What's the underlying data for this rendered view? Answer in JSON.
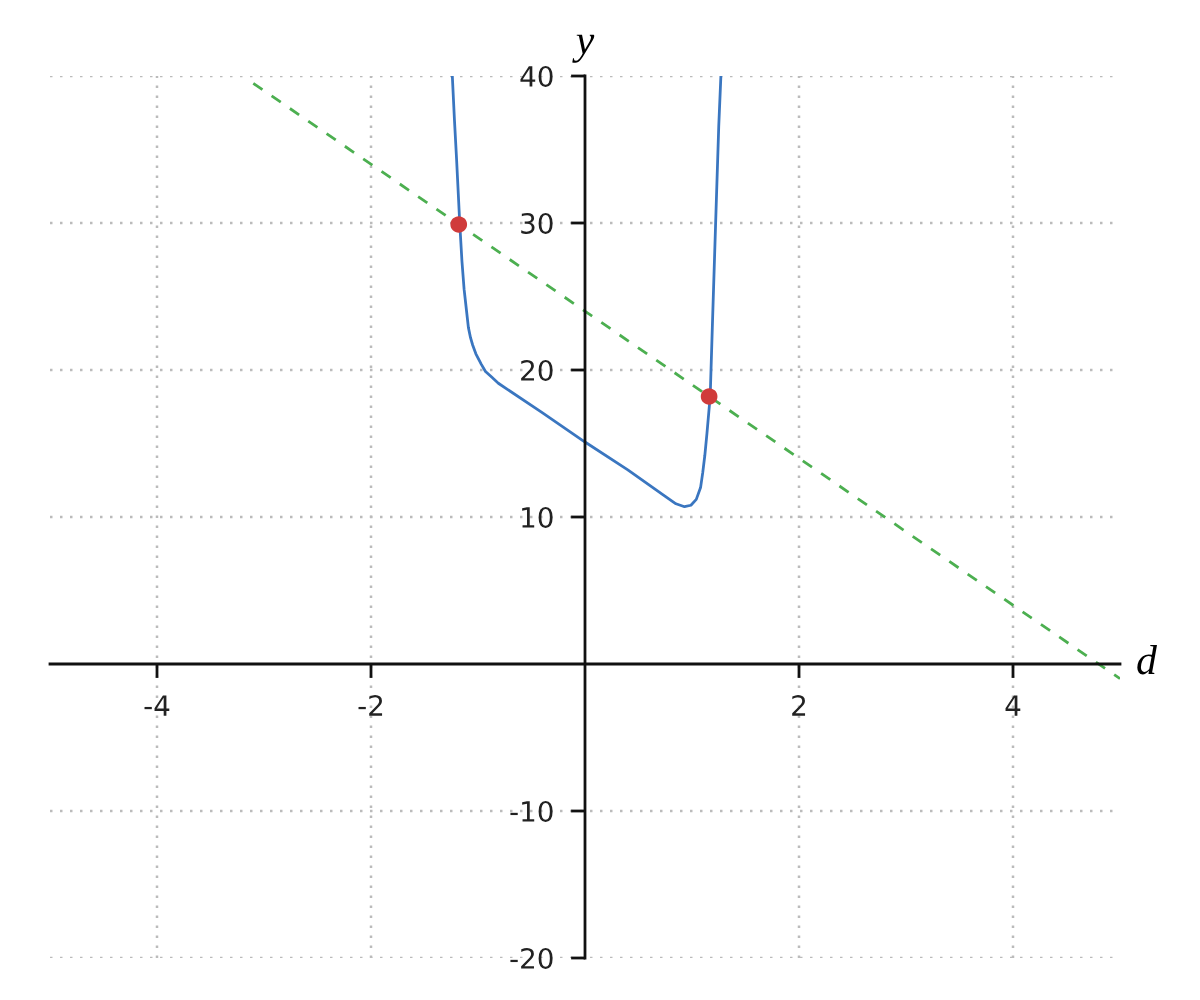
{
  "chart_data": {
    "type": "line",
    "xlabel": "d",
    "ylabel": "y",
    "xlim": [
      -5,
      5
    ],
    "ylim": [
      -20,
      40
    ],
    "xticks": [
      -4,
      -2,
      2,
      4
    ],
    "yticks": [
      -20,
      -10,
      10,
      20,
      30,
      40
    ],
    "grid": true,
    "series": [
      {
        "color": "#3a76c0",
        "line_style": "solid",
        "marker": "none",
        "x": [
          -1.24,
          -1.22,
          -1.2,
          -1.17,
          -1.15,
          -1.13,
          -1.11,
          -1.09,
          -1.07,
          -1.05,
          -1.02,
          -0.97,
          -0.93,
          -0.87,
          -0.81,
          -0.4,
          0,
          0.4,
          0.75,
          0.85,
          0.93,
          0.99,
          1.04,
          1.08,
          1.1,
          1.12,
          1.14,
          1.17,
          1.19,
          1.22,
          1.25,
          1.27
        ],
        "values": [
          40,
          37,
          34.3,
          29.9,
          27.4,
          25.5,
          24.2,
          22.9,
          22.2,
          21.7,
          21.1,
          20.4,
          19.9,
          19.5,
          19.1,
          17.1,
          15.1,
          13.2,
          11.4,
          10.9,
          10.7,
          10.8,
          11.2,
          12.0,
          13.0,
          14.2,
          15.7,
          18.2,
          22.9,
          29.8,
          36.6,
          40
        ]
      },
      {
        "color": "#4caf50",
        "line_style": "dashed",
        "marker": "none",
        "x": [
          -3.1,
          5
        ],
        "values": [
          39.5,
          -1
        ]
      },
      {
        "type": "scatter",
        "color": "#d03b3b",
        "marker": "circle",
        "x": [
          -1.18,
          1.16
        ],
        "values": [
          29.9,
          18.2
        ]
      }
    ]
  }
}
